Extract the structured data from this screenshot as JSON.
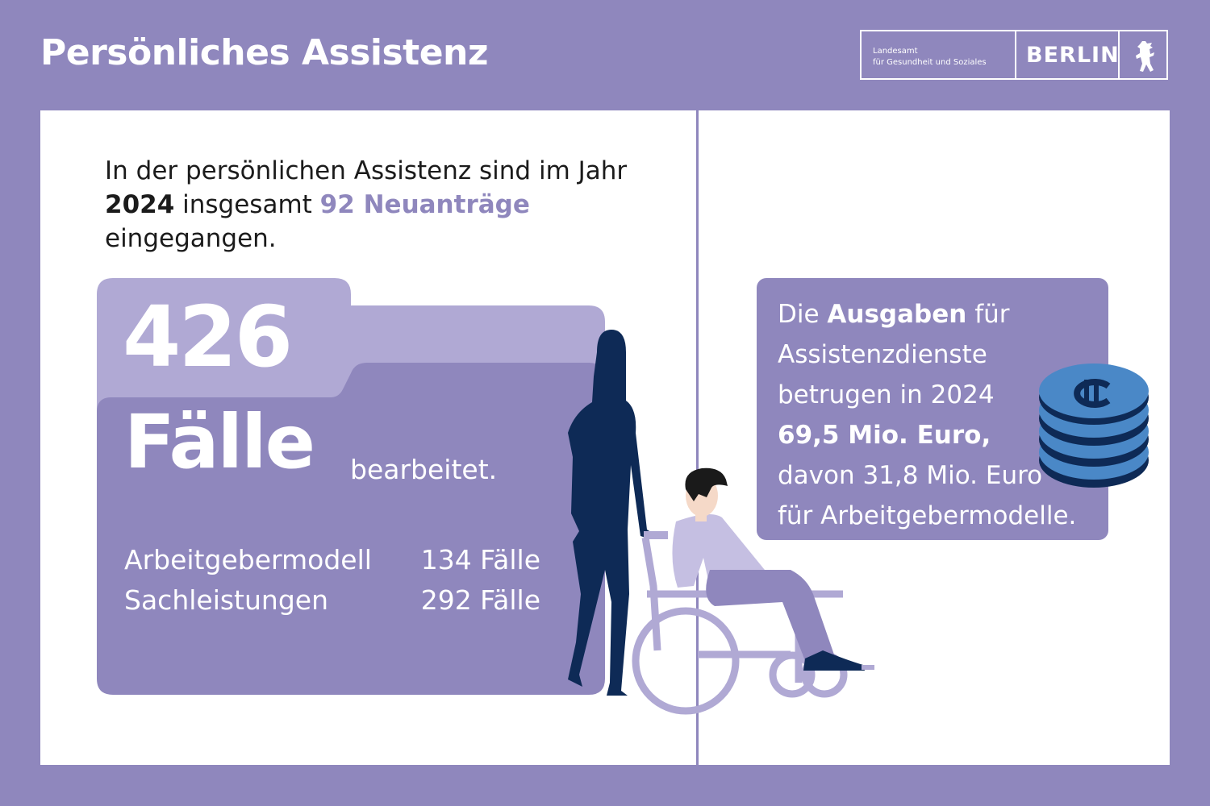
{
  "header": {
    "title": "Persönliches Assistenz",
    "logo": {
      "agency_line1": "Landesamt",
      "agency_line2": "für Gesundheit und Soziales",
      "city": "BERLIN",
      "emblem": "berlin-bear-icon"
    }
  },
  "intro": {
    "part1": "In der persönlichen Assistenz sind im Jahr",
    "year": "2024",
    "part2": "insgesamt",
    "highlight": "92 Neuanträge",
    "part3": "eingegangen."
  },
  "cases": {
    "total": "426",
    "word": "Fälle",
    "suffix": "bearbeitet.",
    "rows": [
      {
        "label": "Arbeitgebermodell",
        "value": "134 Fälle"
      },
      {
        "label": "Sachleistungen",
        "value": "292 Fälle"
      }
    ]
  },
  "expenses": {
    "part1": "Die",
    "bold1": "Ausgaben",
    "part2": "für Assistenzdienste betrugen in 2024",
    "amount": "69,5 Mio. Euro,",
    "part3": "davon 31,8 Mio. Euro für Arbeitgebermodelle."
  },
  "colors": {
    "background": "#8f87bd",
    "panel": "#ffffff",
    "folder_back": "#b0a9d4",
    "folder_front": "#8f87bd",
    "navy": "#0e2a56",
    "coin": "#4a88c7",
    "text_dark": "#1b1b1b"
  },
  "illustrations": {
    "people": "person-pushing-wheelchair-icon",
    "coins": "euro-coin-stack-icon"
  }
}
